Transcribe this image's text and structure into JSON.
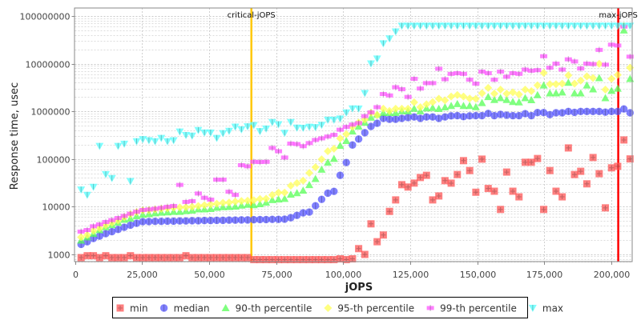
{
  "chart_data": {
    "type": "scatter",
    "xlabel": "jOPS",
    "ylabel": "Response time, usec",
    "xlim": [
      0,
      207800
    ],
    "ylim": [
      700,
      147000000
    ],
    "yscale": "log",
    "grid": true,
    "legend_position": "bottom",
    "x_ticks": [
      "0",
      "25,000",
      "50,000",
      "75,000",
      "100,000",
      "125,000",
      "150,000",
      "175,000",
      "200,000"
    ],
    "x_tick_values": [
      0,
      25000,
      50000,
      75000,
      100000,
      125000,
      150000,
      175000,
      200000
    ],
    "y_ticks": [
      "1000",
      "10000",
      "100000",
      "1000000",
      "10000000",
      "100000000"
    ],
    "y_tick_values": [
      1000,
      10000,
      100000,
      1000000,
      10000000,
      100000000
    ],
    "x_step": 2300,
    "annotations": [
      {
        "label": "critical-jOPS",
        "x": 65800,
        "color": "#ffc800"
      },
      {
        "label": "max-jOPS",
        "x": 202600,
        "color": "#ff0000"
      }
    ],
    "series": [
      {
        "name": "min",
        "color": "#ff5555",
        "marker": "square",
        "values": [
          850,
          930,
          930,
          850,
          930,
          850,
          850,
          850,
          930,
          850,
          850,
          850,
          850,
          850,
          850,
          850,
          850,
          930,
          850,
          850,
          850,
          850,
          850,
          850,
          850,
          850,
          850,
          850,
          770,
          770,
          770,
          770,
          770,
          770,
          770,
          770,
          770,
          770,
          770,
          770,
          770,
          770,
          800,
          770,
          800,
          1310,
          990,
          4340,
          1830,
          2530,
          7920,
          13800,
          28800,
          25700,
          31100,
          40700,
          45300,
          13800,
          16700,
          35000,
          31000,
          47000,
          92000,
          57000,
          20000,
          99000,
          24000,
          21000,
          8700,
          53000,
          21000,
          16000,
          85000,
          85000,
          102000,
          8700,
          57000,
          21000,
          16000,
          170000,
          47000,
          55000,
          30000,
          107000,
          49000,
          9400,
          65000,
          70000,
          250000,
          100000
        ]
      },
      {
        "name": "median",
        "color": "#5555ff",
        "marker": "circle",
        "values": [
          1610,
          1830,
          2140,
          2400,
          2700,
          2980,
          3310,
          3680,
          4070,
          4460,
          4820,
          4850,
          4900,
          4900,
          4950,
          4950,
          5000,
          5000,
          5050,
          5050,
          5100,
          5100,
          5150,
          5150,
          5200,
          5200,
          5250,
          5250,
          5300,
          5340,
          5350,
          5400,
          5400,
          5450,
          5840,
          6550,
          7370,
          7660,
          10400,
          14200,
          19100,
          20900,
          45300,
          84000,
          196000,
          261000,
          355000,
          480000,
          560000,
          710000,
          680000,
          680000,
          710000,
          740000,
          760000,
          710000,
          760000,
          760000,
          710000,
          760000,
          800000,
          810000,
          770000,
          800000,
          810000,
          810000,
          900000,
          810000,
          860000,
          830000,
          810000,
          810000,
          890000,
          810000,
          940000,
          940000,
          850000,
          930000,
          930000,
          990000,
          950000,
          990000,
          990000,
          990000,
          990000,
          960000,
          990000,
          990000,
          1120000,
          930000
        ]
      },
      {
        "name": "90-th percentile",
        "color": "#55ff55",
        "marker": "triangle-up",
        "values": [
          1950,
          2280,
          2700,
          3220,
          3720,
          4130,
          4630,
          5330,
          5630,
          6320,
          6800,
          7000,
          7300,
          7500,
          7600,
          7800,
          7800,
          8100,
          8300,
          8800,
          8800,
          9000,
          9500,
          9800,
          9900,
          10100,
          10600,
          11000,
          10800,
          11300,
          12200,
          13800,
          14200,
          14600,
          17900,
          19300,
          21700,
          28500,
          38300,
          60000,
          84000,
          101000,
          190000,
          240000,
          380000,
          480000,
          580000,
          740000,
          850000,
          930000,
          930000,
          930000,
          1010000,
          1010000,
          1140000,
          1010000,
          1160000,
          1180000,
          1130000,
          1220000,
          1300000,
          1430000,
          1300000,
          1300000,
          1230000,
          1500000,
          2000000,
          1740000,
          1900000,
          1740000,
          1580000,
          1550000,
          1900000,
          1720000,
          2200000,
          3500000,
          2400000,
          2400000,
          2500000,
          4000000,
          2400000,
          2400000,
          3500000,
          2900000,
          5000000,
          1900000,
          2700000,
          3000000,
          50000000,
          4800000
        ]
      },
      {
        "name": "95-th percentile",
        "color": "#ffff55",
        "marker": "diamond",
        "values": [
          2280,
          2530,
          3100,
          3530,
          4070,
          4570,
          5120,
          5980,
          6900,
          7660,
          8300,
          8400,
          8700,
          9000,
          9200,
          9500,
          9600,
          9700,
          9900,
          10300,
          10700,
          11100,
          11500,
          12000,
          12200,
          12700,
          13100,
          13300,
          13600,
          14500,
          14600,
          17500,
          19600,
          19600,
          27400,
          31100,
          35000,
          51000,
          67000,
          98000,
          145000,
          164000,
          270000,
          330000,
          470000,
          580000,
          670000,
          930000,
          840000,
          1130000,
          1020000,
          1130000,
          1130000,
          1130000,
          1540000,
          1220000,
          1400000,
          1560000,
          1840000,
          1700000,
          2040000,
          2200000,
          2040000,
          1850000,
          1830000,
          2400000,
          3100000,
          2350000,
          2850000,
          2350000,
          2500000,
          2260000,
          2850000,
          2650000,
          3500000,
          6400000,
          3700000,
          3700000,
          3800000,
          5700000,
          3800000,
          4400000,
          5400000,
          5000000,
          9900000,
          2850000,
          4800000,
          5800000,
          62000000,
          8200000
        ]
      },
      {
        "name": "99-th percentile",
        "color": "#ff55ff",
        "marker": "bar",
        "values": [
          2980,
          3220,
          3860,
          4230,
          4750,
          5200,
          5760,
          6380,
          7100,
          7800,
          8470,
          8700,
          9000,
          9400,
          9900,
          10300,
          28500,
          12500,
          13000,
          18800,
          15300,
          14000,
          36700,
          36700,
          20500,
          17600,
          74000,
          70000,
          87000,
          86000,
          87000,
          170000,
          145000,
          107000,
          210000,
          205000,
          185000,
          215000,
          250000,
          270000,
          295000,
          320000,
          410000,
          470000,
          525000,
          565000,
          790000,
          950000,
          1220000,
          2300000,
          2150000,
          3200000,
          2900000,
          2000000,
          4800000,
          3000000,
          3900000,
          3900000,
          7800000,
          4700000,
          6100000,
          6300000,
          6100000,
          4600000,
          3800000,
          6800000,
          6300000,
          4600000,
          6800000,
          5300000,
          6300000,
          6100000,
          7500000,
          7100000,
          7300000,
          14300000,
          8200000,
          10000000,
          7500000,
          12300000,
          11100000,
          7900000,
          10000000,
          9800000,
          19400000,
          9500000,
          25000000,
          24000000,
          60000000,
          14000000
        ]
      },
      {
        "name": "max",
        "color": "#55ffff",
        "marker": "triangle-down",
        "values": [
          22600,
          17500,
          25700,
          186000,
          47600,
          39300,
          186000,
          207000,
          34000,
          233000,
          258000,
          245000,
          233000,
          274000,
          233000,
          245000,
          373000,
          315000,
          305000,
          400000,
          355000,
          355000,
          274000,
          345000,
          385000,
          472000,
          415000,
          480000,
          510000,
          380000,
          430000,
          590000,
          530000,
          350000,
          590000,
          450000,
          445000,
          470000,
          460000,
          515000,
          660000,
          660000,
          700000,
          940000,
          1140000,
          1130000,
          2400000,
          10000000,
          12700000,
          26500000,
          33500000,
          47000000,
          62000000,
          62000000,
          62000000,
          62000000,
          62000000,
          62000000,
          62000000,
          62000000,
          62000000,
          62000000,
          62000000,
          62000000,
          62000000,
          62000000,
          62000000,
          62000000,
          62000000,
          62000000,
          62000000,
          62000000,
          62000000,
          62000000,
          62000000,
          62000000,
          62000000,
          62000000,
          62000000,
          62000000,
          62000000,
          62000000,
          62000000,
          62000000,
          62000000,
          62000000,
          62000000,
          62000000,
          62000000,
          62000000
        ]
      }
    ]
  }
}
